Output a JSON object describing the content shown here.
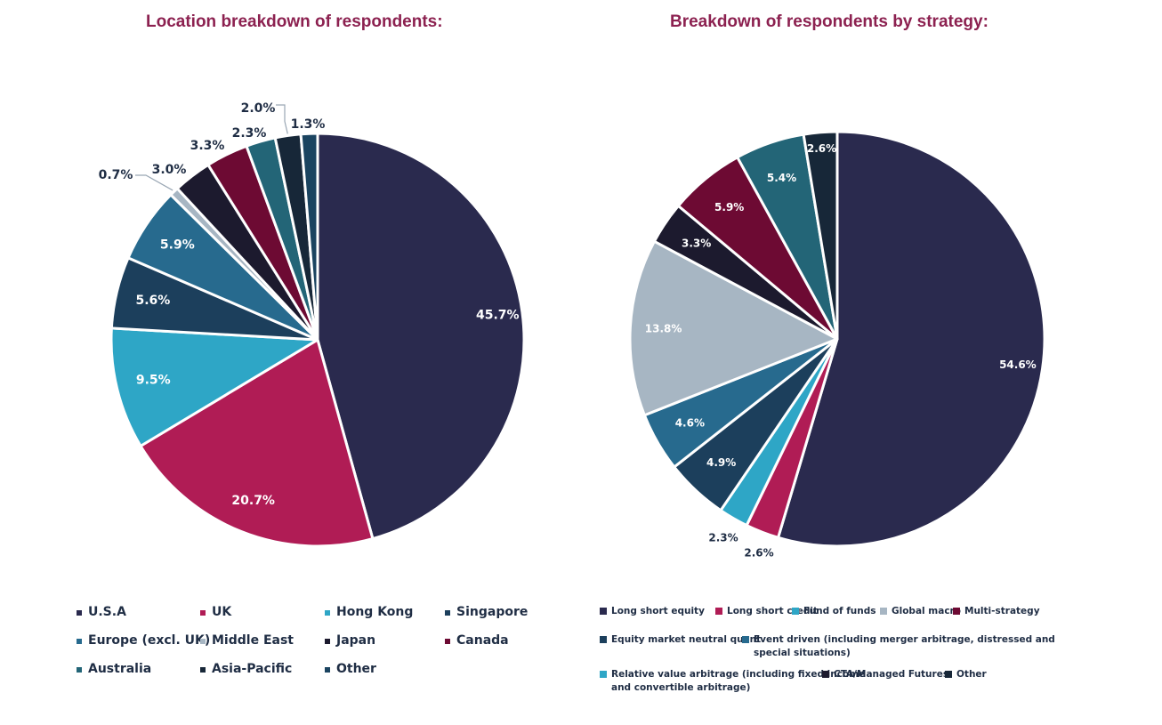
{
  "chart_data": [
    {
      "type": "pie",
      "title": "Location breakdown of respondents:",
      "start_angle": "12 o'clock",
      "direction": "clockwise",
      "legend_position": "bottom",
      "slices": [
        {
          "label": "U.S.A",
          "value": 45.7,
          "display": "45.7%",
          "color": "#2a2a4e",
          "label_pos": "inside"
        },
        {
          "label": "UK",
          "value": 20.7,
          "display": "20.7%",
          "color": "#b01c55",
          "label_pos": "inside"
        },
        {
          "label": "Hong Kong",
          "value": 9.5,
          "display": "9.5%",
          "color": "#2ea6c6",
          "label_pos": "inside"
        },
        {
          "label": "Singapore",
          "value": 5.6,
          "display": "5.6%",
          "color": "#1c3f5c",
          "label_pos": "inside"
        },
        {
          "label": "Europe (excl. UK)",
          "value": 5.9,
          "display": "5.9%",
          "color": "#276a8e",
          "label_pos": "inside"
        },
        {
          "label": "Middle East",
          "value": 0.7,
          "display": "0.7%",
          "color": "#a7b6c3",
          "label_pos": "outside"
        },
        {
          "label": "Japan",
          "value": 3.0,
          "display": "3.0%",
          "color": "#1c1a2e",
          "label_pos": "outside"
        },
        {
          "label": "Canada",
          "value": 3.3,
          "display": "3.3%",
          "color": "#6d0a33",
          "label_pos": "outside"
        },
        {
          "label": "Australia",
          "value": 2.3,
          "display": "2.3%",
          "color": "#236577",
          "label_pos": "outside"
        },
        {
          "label": "Asia-Pacific",
          "value": 2.0,
          "display": "2.0%",
          "color": "#172738",
          "label_pos": "outside"
        },
        {
          "label": "Other",
          "value": 1.3,
          "display": "1.3%",
          "color": "#1b4460",
          "label_pos": "outside"
        }
      ]
    },
    {
      "type": "pie",
      "title": "Breakdown of respondents by strategy:",
      "start_angle": "12 o'clock",
      "direction": "clockwise",
      "legend_position": "bottom",
      "slices": [
        {
          "label": "Long short equity",
          "value": 54.6,
          "display": "54.6%",
          "color": "#2a2a4e",
          "label_pos": "inside"
        },
        {
          "label": "Long short credit",
          "value": 2.6,
          "display": "2.6%",
          "color": "#b01c55",
          "label_pos": "outside"
        },
        {
          "label": "Fund of funds",
          "value": 2.3,
          "display": "2.3%",
          "color": "#2ea6c6",
          "label_pos": "outside"
        },
        {
          "label": "Equity market neutral quant",
          "value": 4.9,
          "display": "4.9%",
          "color": "#1c3f5c",
          "label_pos": "inside"
        },
        {
          "label": "Event driven (including merger arbitrage, distressed and special situations)",
          "value": 4.6,
          "display": "4.6%",
          "color": "#276a8e",
          "label_pos": "inside"
        },
        {
          "label": "Global macro",
          "value": 13.8,
          "display": "13.8%",
          "color": "#a7b6c3",
          "label_pos": "inside"
        },
        {
          "label": "CTA/Managed Futures",
          "value": 3.3,
          "display": "3.3%",
          "color": "#1c1a2e",
          "label_pos": "inside"
        },
        {
          "label": "Multi-strategy",
          "value": 5.9,
          "display": "5.9%",
          "color": "#6d0a33",
          "label_pos": "inside"
        },
        {
          "label": "Relative value arbitrage (including fixed income and convertible arbitrage)",
          "value": 5.4,
          "display": "5.4%",
          "color": "#236577",
          "label_pos": "inside"
        },
        {
          "label": "Other",
          "value": 2.6,
          "display": "2.6%",
          "color": "#172738",
          "label_pos": "inside"
        }
      ]
    }
  ],
  "legend1": {
    "items": [
      {
        "label": "U.S.A",
        "color": "#2a2a4e"
      },
      {
        "label": "UK",
        "color": "#b01c55"
      },
      {
        "label": "Hong Kong",
        "color": "#2ea6c6"
      },
      {
        "label": "Singapore",
        "color": "#1c3f5c"
      },
      {
        "label": "Europe (excl. UK)",
        "color": "#276a8e"
      },
      {
        "label": "Middle East",
        "color": "#a7b6c3"
      },
      {
        "label": "Japan",
        "color": "#1c1a2e"
      },
      {
        "label": "Canada",
        "color": "#6d0a33"
      },
      {
        "label": "Australia",
        "color": "#236577"
      },
      {
        "label": "Asia-Pacific",
        "color": "#172738"
      },
      {
        "label": "Other",
        "color": "#1b4460"
      }
    ]
  },
  "legend2": {
    "items": [
      {
        "label": "Long short equity",
        "color": "#2a2a4e"
      },
      {
        "label": "Long short credit",
        "color": "#b01c55"
      },
      {
        "label": "Fund of funds",
        "color": "#2ea6c6"
      },
      {
        "label": "Global macro",
        "color": "#a7b6c3"
      },
      {
        "label": "Multi-strategy",
        "color": "#6d0a33"
      },
      {
        "label": "Equity market neutral quant",
        "color": "#1c3f5c"
      },
      {
        "label": "Event driven (including merger arbitrage, distressed and",
        "label2": "special situations)",
        "color": "#276a8e"
      },
      {
        "label": "Relative value arbitrage (including fixed income",
        "label2": "and convertible arbitrage)",
        "color": "#2ea6c6"
      },
      {
        "label": "CTA/Managed Futures",
        "color": "#1c1a2e"
      },
      {
        "label": "Other",
        "color": "#172738"
      }
    ]
  }
}
